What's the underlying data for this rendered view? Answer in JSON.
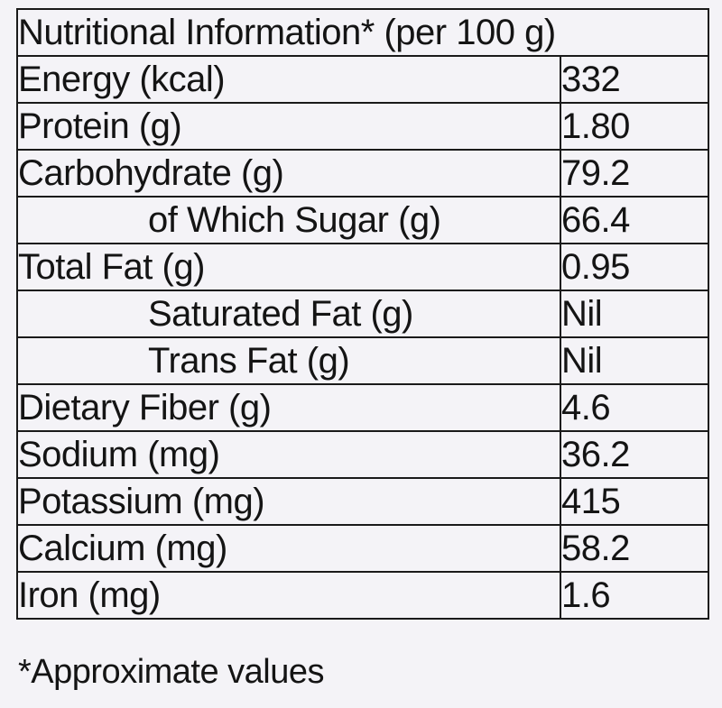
{
  "table": {
    "title": "Nutritional Information* (per 100 g)",
    "rows": [
      {
        "name": "Energy (kcal)",
        "value": "332",
        "sub": false
      },
      {
        "name": "Protein (g)",
        "value": "1.80",
        "sub": false
      },
      {
        "name": "Carbohydrate (g)",
        "value": "79.2",
        "sub": false
      },
      {
        "name": "of Which Sugar (g)",
        "value": "66.4",
        "sub": true
      },
      {
        "name": "Total Fat (g)",
        "value": "0.95",
        "sub": false
      },
      {
        "name": "Saturated Fat (g)",
        "value": "Nil",
        "sub": true
      },
      {
        "name": "Trans Fat (g)",
        "value": "Nil",
        "sub": true
      },
      {
        "name": "Dietary Fiber (g)",
        "value": "4.6",
        "sub": false
      },
      {
        "name": "Sodium (mg)",
        "value": "36.2",
        "sub": false
      },
      {
        "name": "Potassium (mg)",
        "value": "415",
        "sub": false
      },
      {
        "name": "Calcium (mg)",
        "value": "58.2",
        "sub": false
      },
      {
        "name": "Iron (mg)",
        "value": "1.6",
        "sub": false
      }
    ]
  },
  "footnote": "*Approximate values"
}
